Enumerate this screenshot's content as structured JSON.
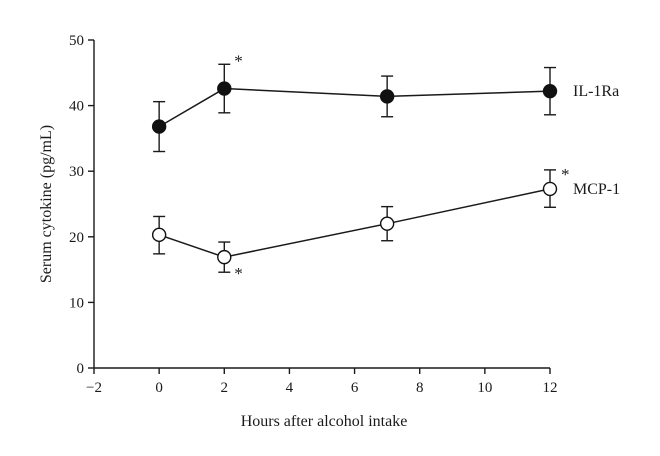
{
  "chart_data": {
    "type": "line",
    "title": "",
    "xlabel": "Hours after alcohol intake",
    "ylabel": "Serum cytokine (pg/mL)",
    "xlim": [
      -2,
      12
    ],
    "ylim": [
      0,
      50
    ],
    "xticks": [
      "−2",
      "0",
      "2",
      "4",
      "6",
      "8",
      "10",
      "12"
    ],
    "xtick_values": [
      -2,
      0,
      2,
      4,
      6,
      8,
      10,
      12
    ],
    "yticks": [
      "0",
      "10",
      "20",
      "30",
      "40",
      "50"
    ],
    "ytick_values": [
      0,
      10,
      20,
      30,
      40,
      50
    ],
    "grid": false,
    "series": [
      {
        "name": "IL-1Ra",
        "marker": "filled-circle",
        "x": [
          0,
          2,
          7,
          12
        ],
        "values": [
          36.8,
          42.6,
          41.4,
          42.2
        ],
        "err_low": [
          33.0,
          38.9,
          38.3,
          38.6
        ],
        "err_high": [
          40.6,
          46.3,
          44.5,
          45.8
        ],
        "significant": [
          false,
          true,
          false,
          false
        ],
        "sig_label": "*"
      },
      {
        "name": "MCP-1",
        "marker": "open-circle",
        "x": [
          0,
          2,
          7,
          12
        ],
        "values": [
          20.3,
          16.9,
          22.0,
          27.3
        ],
        "err_low": [
          17.4,
          14.6,
          19.4,
          24.5
        ],
        "err_high": [
          23.1,
          19.2,
          24.6,
          30.2
        ],
        "significant": [
          false,
          true,
          false,
          true
        ],
        "sig_label": "*"
      }
    ]
  }
}
